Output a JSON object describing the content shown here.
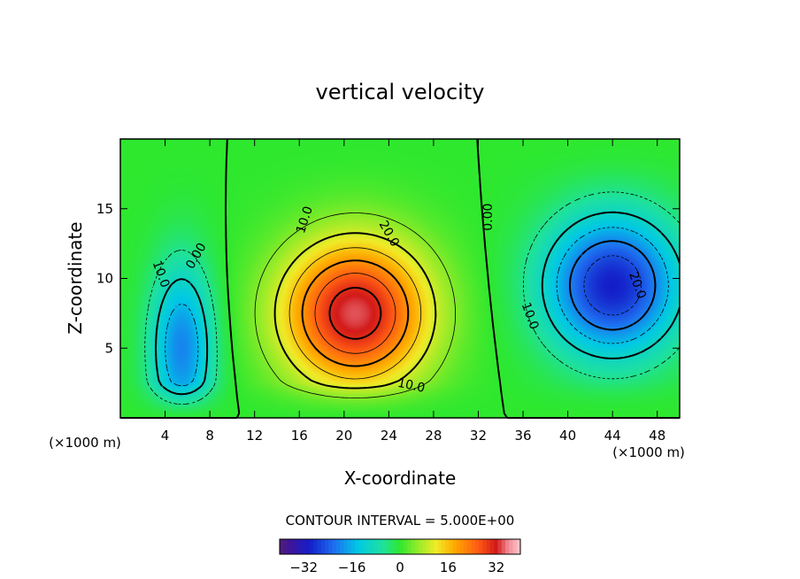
{
  "chart_data": {
    "type": "heatmap",
    "title": "vertical velocity",
    "xlabel": "X-coordinate",
    "ylabel": "Z-coordinate",
    "x_unit": "(×1000 m)",
    "y_unit": "(×1000 m)",
    "xlim": [
      0,
      50
    ],
    "ylim": [
      0,
      20
    ],
    "x_ticks": [
      "4",
      "8",
      "12",
      "16",
      "20",
      "24",
      "28",
      "32",
      "36",
      "40",
      "44",
      "48"
    ],
    "y_ticks": [
      "5",
      "10",
      "15"
    ],
    "contour_interval_text": "CONTOUR INTERVAL = 5.000E+00",
    "colorbar": {
      "range": [
        -40,
        40
      ],
      "ticks": [
        "−32",
        "−16",
        "0",
        "16",
        "32"
      ]
    },
    "contour_labels": [
      {
        "text": "0.00",
        "x": 6.8,
        "y": 11.6,
        "angle": -60
      },
      {
        "text": "0.00",
        "x": 32.9,
        "y": 14.4,
        "angle": -90
      },
      {
        "text": "10.0",
        "x": 16.5,
        "y": 14.2,
        "angle": -72
      },
      {
        "text": "20.0",
        "x": 24.0,
        "y": 13.2,
        "angle": 60
      },
      {
        "text": "10.0",
        "x": 26.0,
        "y": 2.3,
        "angle": 12
      },
      {
        "text": "10.0",
        "x": 3.6,
        "y": 10.3,
        "angle": 70
      },
      {
        "text": "10.0",
        "x": 36.6,
        "y": 7.3,
        "angle": 70
      },
      {
        "text": "20.0",
        "x": 46.2,
        "y": 9.5,
        "angle": 70
      }
    ],
    "features": [
      {
        "kind": "updraft",
        "peak": 34,
        "x": 21,
        "y": 7.5
      },
      {
        "kind": "downdraft",
        "peak": -30,
        "x": 44,
        "y": 9.5
      },
      {
        "kind": "downdraft",
        "peak": -20,
        "x": 5.5,
        "y": 5
      }
    ]
  }
}
